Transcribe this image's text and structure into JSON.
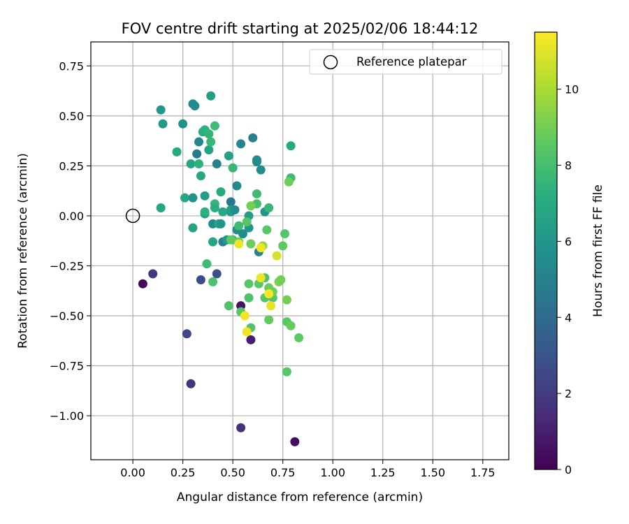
{
  "chart_data": {
    "type": "scatter",
    "title": "FOV centre drift starting at 2025/02/06 18:44:12",
    "xlabel": "Angular distance from reference (arcmin)",
    "ylabel": "Rotation from reference (arcmin)",
    "xlim": [
      -0.21,
      1.88
    ],
    "ylim": [
      -1.22,
      0.87
    ],
    "xticks": [
      0.0,
      0.25,
      0.5,
      0.75,
      1.0,
      1.25,
      1.5,
      1.75
    ],
    "xtick_labels": [
      "0.00",
      "0.25",
      "0.50",
      "0.75",
      "1.00",
      "1.25",
      "1.50",
      "1.75"
    ],
    "yticks": [
      0.75,
      0.5,
      0.25,
      0.0,
      -0.25,
      -0.5,
      -0.75,
      -1.0
    ],
    "ytick_labels": [
      "0.75",
      "0.50",
      "0.25",
      "0.00",
      "−0.25",
      "−0.50",
      "−0.75",
      "−1.00"
    ],
    "grid": true,
    "legend": {
      "placement": "top-right",
      "entries": [
        "Reference platepar"
      ]
    },
    "reference_point": {
      "x": 0.0,
      "y": 0.0
    },
    "colorbar": {
      "label": "Hours from first FF file",
      "colormap": "viridis",
      "range": [
        0,
        11.5
      ],
      "ticks": [
        0,
        2,
        4,
        6,
        8,
        10
      ],
      "tick_labels": [
        "0",
        "2",
        "4",
        "6",
        "8",
        "10"
      ]
    },
    "points": [
      {
        "x": 0.05,
        "y": -0.34,
        "h": 0.2
      },
      {
        "x": 0.1,
        "y": -0.29,
        "h": 1.8
      },
      {
        "x": 0.81,
        "y": -1.13,
        "h": 0.4
      },
      {
        "x": 0.54,
        "y": -1.06,
        "h": 1.6
      },
      {
        "x": 0.27,
        "y": -0.59,
        "h": 2.4
      },
      {
        "x": 0.29,
        "y": -0.84,
        "h": 1.7
      },
      {
        "x": 0.34,
        "y": -0.32,
        "h": 2.6
      },
      {
        "x": 0.42,
        "y": -0.29,
        "h": 2.8
      },
      {
        "x": 0.54,
        "y": -0.45,
        "h": 0.6
      },
      {
        "x": 0.59,
        "y": -0.62,
        "h": 1.0
      },
      {
        "x": 0.14,
        "y": 0.53,
        "h": 6.1
      },
      {
        "x": 0.15,
        "y": 0.46,
        "h": 6.2
      },
      {
        "x": 0.14,
        "y": 0.04,
        "h": 6.8
      },
      {
        "x": 0.22,
        "y": 0.32,
        "h": 7.0
      },
      {
        "x": 0.25,
        "y": 0.46,
        "h": 5.8
      },
      {
        "x": 0.26,
        "y": 0.09,
        "h": 6.9
      },
      {
        "x": 0.29,
        "y": 0.26,
        "h": 6.8
      },
      {
        "x": 0.3,
        "y": 0.56,
        "h": 5.4
      },
      {
        "x": 0.31,
        "y": 0.55,
        "h": 5.6
      },
      {
        "x": 0.3,
        "y": 0.09,
        "h": 5.8
      },
      {
        "x": 0.3,
        "y": -0.06,
        "h": 6.7
      },
      {
        "x": 0.32,
        "y": 0.31,
        "h": 4.7
      },
      {
        "x": 0.33,
        "y": 0.37,
        "h": 5.2
      },
      {
        "x": 0.33,
        "y": 0.26,
        "h": 7.4
      },
      {
        "x": 0.34,
        "y": 0.2,
        "h": 6.8
      },
      {
        "x": 0.35,
        "y": 0.42,
        "h": 7.2
      },
      {
        "x": 0.36,
        "y": 0.01,
        "h": 6.3
      },
      {
        "x": 0.36,
        "y": 0.43,
        "h": 7.3
      },
      {
        "x": 0.36,
        "y": 0.1,
        "h": 6.3
      },
      {
        "x": 0.36,
        "y": 0.02,
        "h": 7.3
      },
      {
        "x": 0.37,
        "y": -0.24,
        "h": 7.8
      },
      {
        "x": 0.38,
        "y": 0.33,
        "h": 6.6
      },
      {
        "x": 0.39,
        "y": 0.6,
        "h": 6.4
      },
      {
        "x": 0.38,
        "y": 0.41,
        "h": 7.5
      },
      {
        "x": 0.39,
        "y": 0.37,
        "h": 7.6
      },
      {
        "x": 0.4,
        "y": -0.04,
        "h": 5.4
      },
      {
        "x": 0.4,
        "y": -0.13,
        "h": 6.7
      },
      {
        "x": 0.41,
        "y": 0.06,
        "h": 7.6
      },
      {
        "x": 0.41,
        "y": 0.04,
        "h": 7.2
      },
      {
        "x": 0.41,
        "y": 0.45,
        "h": 7.8
      },
      {
        "x": 0.42,
        "y": 0.26,
        "h": 5.0
      },
      {
        "x": 0.43,
        "y": -0.04,
        "h": 6.9
      },
      {
        "x": 0.44,
        "y": -0.04,
        "h": 6.0
      },
      {
        "x": 0.44,
        "y": 0.12,
        "h": 7.0
      },
      {
        "x": 0.45,
        "y": 0.02,
        "h": 6.9
      },
      {
        "x": 0.45,
        "y": -0.13,
        "h": 5.0
      },
      {
        "x": 0.47,
        "y": -0.12,
        "h": 6.2
      },
      {
        "x": 0.48,
        "y": 0.3,
        "h": 6.4
      },
      {
        "x": 0.49,
        "y": 0.02,
        "h": 5.8
      },
      {
        "x": 0.49,
        "y": 0.07,
        "h": 4.6
      },
      {
        "x": 0.49,
        "y": 0.03,
        "h": 6.4
      },
      {
        "x": 0.5,
        "y": 0.24,
        "h": 7.6
      },
      {
        "x": 0.5,
        "y": -0.12,
        "h": 7.9
      },
      {
        "x": 0.51,
        "y": 0.03,
        "h": 5.6
      },
      {
        "x": 0.52,
        "y": -0.07,
        "h": 5.5
      },
      {
        "x": 0.52,
        "y": 0.15,
        "h": 5.4
      },
      {
        "x": 0.53,
        "y": -0.05,
        "h": 7.8
      },
      {
        "x": 0.54,
        "y": 0.36,
        "h": 5.2
      },
      {
        "x": 0.55,
        "y": -0.09,
        "h": 5.5
      },
      {
        "x": 0.58,
        "y": 0.0,
        "h": 6.3
      },
      {
        "x": 0.58,
        "y": -0.06,
        "h": 6.0
      },
      {
        "x": 0.6,
        "y": 0.39,
        "h": 5.0
      },
      {
        "x": 0.62,
        "y": 0.28,
        "h": 5.3
      },
      {
        "x": 0.62,
        "y": 0.27,
        "h": 5.6
      },
      {
        "x": 0.62,
        "y": 0.11,
        "h": 7.8
      },
      {
        "x": 0.62,
        "y": 0.06,
        "h": 8.0
      },
      {
        "x": 0.63,
        "y": -0.18,
        "h": 5.1
      },
      {
        "x": 0.64,
        "y": 0.23,
        "h": 5.6
      },
      {
        "x": 0.66,
        "y": 0.02,
        "h": 6.0
      },
      {
        "x": 0.68,
        "y": 0.04,
        "h": 7.6
      },
      {
        "x": 0.79,
        "y": 0.35,
        "h": 7.0
      },
      {
        "x": 0.79,
        "y": 0.19,
        "h": 7.8
      },
      {
        "x": 0.4,
        "y": -0.33,
        "h": 8.2
      },
      {
        "x": 0.48,
        "y": -0.45,
        "h": 8.2
      },
      {
        "x": 0.49,
        "y": -0.12,
        "h": 8.6
      },
      {
        "x": 0.53,
        "y": -0.13,
        "h": 8.8
      },
      {
        "x": 0.54,
        "y": -0.48,
        "h": 8.4
      },
      {
        "x": 0.57,
        "y": -0.03,
        "h": 8.4
      },
      {
        "x": 0.58,
        "y": -0.34,
        "h": 8.5
      },
      {
        "x": 0.58,
        "y": -0.41,
        "h": 8.2
      },
      {
        "x": 0.59,
        "y": -0.14,
        "h": 8.9
      },
      {
        "x": 0.59,
        "y": 0.05,
        "h": 9.0
      },
      {
        "x": 0.59,
        "y": -0.56,
        "h": 8.3
      },
      {
        "x": 0.63,
        "y": -0.34,
        "h": 8.5
      },
      {
        "x": 0.65,
        "y": -0.15,
        "h": 9.6
      },
      {
        "x": 0.66,
        "y": -0.41,
        "h": 8.4
      },
      {
        "x": 0.66,
        "y": -0.31,
        "h": 8.2
      },
      {
        "x": 0.67,
        "y": -0.07,
        "h": 8.5
      },
      {
        "x": 0.68,
        "y": -0.36,
        "h": 8.8
      },
      {
        "x": 0.68,
        "y": -0.52,
        "h": 8.7
      },
      {
        "x": 0.7,
        "y": -0.41,
        "h": 8.4
      },
      {
        "x": 0.7,
        "y": -0.38,
        "h": 8.9
      },
      {
        "x": 0.73,
        "y": -0.33,
        "h": 9.2
      },
      {
        "x": 0.74,
        "y": -0.32,
        "h": 9.0
      },
      {
        "x": 0.75,
        "y": -0.15,
        "h": 8.6
      },
      {
        "x": 0.76,
        "y": -0.09,
        "h": 8.4
      },
      {
        "x": 0.77,
        "y": -0.53,
        "h": 8.5
      },
      {
        "x": 0.77,
        "y": -0.42,
        "h": 9.0
      },
      {
        "x": 0.77,
        "y": -0.78,
        "h": 8.5
      },
      {
        "x": 0.78,
        "y": 0.17,
        "h": 8.9
      },
      {
        "x": 0.79,
        "y": -0.55,
        "h": 8.8
      },
      {
        "x": 0.83,
        "y": -0.61,
        "h": 8.6
      },
      {
        "x": 0.53,
        "y": -0.14,
        "h": 11.2
      },
      {
        "x": 0.56,
        "y": -0.5,
        "h": 11.3
      },
      {
        "x": 0.57,
        "y": -0.58,
        "h": 11.3
      },
      {
        "x": 0.64,
        "y": -0.31,
        "h": 11.2
      },
      {
        "x": 0.64,
        "y": -0.16,
        "h": 11.3
      },
      {
        "x": 0.68,
        "y": -0.39,
        "h": 11.4
      },
      {
        "x": 0.69,
        "y": -0.45,
        "h": 11.1
      },
      {
        "x": 0.72,
        "y": -0.2,
        "h": 10.8
      }
    ]
  }
}
